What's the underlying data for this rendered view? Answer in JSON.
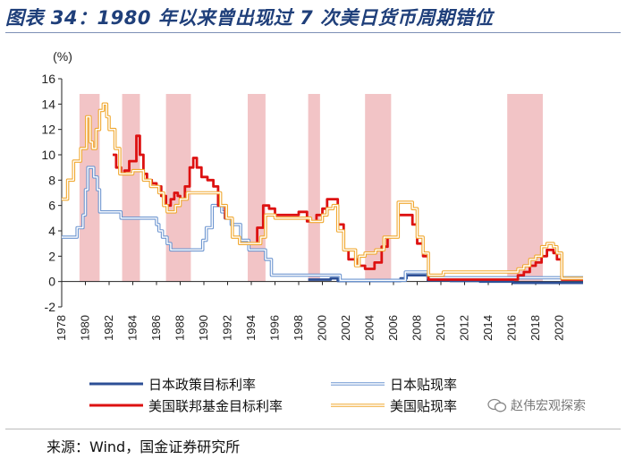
{
  "title": "图表 34：1980 年以来曾出现过 7 次美日货币周期错位",
  "source": "来源：Wind，国金证券研究所",
  "watermark": "赵伟宏观探索",
  "chart_data": {
    "type": "line",
    "ylabel": "(%)",
    "ylim": [
      -2,
      16
    ],
    "yticks": [
      -2,
      0,
      2,
      4,
      6,
      8,
      10,
      12,
      14,
      16
    ],
    "xlim": [
      1978,
      2022
    ],
    "xticks": [
      1978,
      1980,
      1982,
      1984,
      1986,
      1988,
      1990,
      1992,
      1994,
      1996,
      1998,
      2000,
      2002,
      2004,
      2006,
      2008,
      2010,
      2012,
      2014,
      2016,
      2018,
      2020
    ],
    "grid": false,
    "shaded_periods": [
      [
        1979.5,
        1981.2
      ],
      [
        1983.1,
        1984.6
      ],
      [
        1986.8,
        1988.9
      ],
      [
        1993.7,
        1995.2
      ],
      [
        1998.8,
        1999.8
      ],
      [
        2003.6,
        2005.8
      ],
      [
        2015.6,
        2018.6
      ]
    ],
    "legend": [
      {
        "label": "日本政策目标利率",
        "color": "#2c4f96",
        "style": "solid"
      },
      {
        "label": "日本贴现率",
        "color": "#6e96d0",
        "style": "double"
      },
      {
        "label": "美国联邦基金目标利率",
        "color": "#dd1111",
        "style": "solid"
      },
      {
        "label": "美国贴现率",
        "color": "#f0a830",
        "style": "double"
      }
    ],
    "series": [
      {
        "name": "日本政策目标利率",
        "color": "#2c4f96",
        "style": "solid",
        "x": [
          1998.8,
          2000.6,
          2000.7,
          2001.2,
          2001.3,
          2006.5,
          2006.6,
          2007.0,
          2007.1,
          2008.8,
          2008.9,
          2010.8,
          2013.3,
          2016.0,
          2016.1,
          2022.0
        ],
        "y": [
          0.15,
          0.15,
          0.25,
          0.25,
          0.05,
          0.05,
          0.25,
          0.25,
          0.5,
          0.5,
          0.1,
          0.05,
          0.0,
          0.0,
          -0.1,
          -0.1
        ]
      },
      {
        "name": "日本贴现率",
        "color": "#6e96d0",
        "style": "double",
        "x": [
          1978.0,
          1979.2,
          1979.3,
          1979.8,
          1980.0,
          1980.2,
          1980.5,
          1980.7,
          1981.0,
          1981.2,
          1983.0,
          1986.0,
          1986.2,
          1986.5,
          1986.9,
          1987.2,
          1989.4,
          1989.9,
          1990.2,
          1990.7,
          1991.5,
          1991.8,
          1992.3,
          1993.1,
          1993.8,
          1995.2,
          1995.7,
          2001.2,
          2001.5,
          2006.5,
          2007.0,
          2008.8,
          2008.9,
          2022.0
        ],
        "y": [
          3.5,
          3.5,
          4.25,
          5.25,
          7.25,
          9.0,
          9.0,
          8.25,
          7.25,
          5.5,
          5.0,
          4.5,
          4.0,
          3.5,
          3.0,
          2.5,
          2.5,
          3.25,
          4.25,
          6.0,
          5.5,
          5.0,
          4.5,
          3.25,
          2.5,
          1.75,
          0.5,
          0.5,
          0.1,
          0.1,
          0.75,
          0.75,
          0.3,
          0.3
        ]
      },
      {
        "name": "美国联邦基金目标利率",
        "color": "#dd1111",
        "style": "solid",
        "x": [
          1982.3,
          1982.6,
          1983.0,
          1983.3,
          1983.7,
          1984.0,
          1984.3,
          1984.6,
          1984.9,
          1985.2,
          1985.6,
          1986.0,
          1986.4,
          1986.8,
          1987.2,
          1987.5,
          1987.8,
          1988.0,
          1988.4,
          1988.8,
          1989.1,
          1989.4,
          1989.8,
          1990.3,
          1990.8,
          1991.2,
          1991.8,
          1992.4,
          1993.0,
          1994.0,
          1994.5,
          1995.0,
          1995.5,
          1996.0,
          1998.0,
          1998.7,
          1999.0,
          1999.5,
          2000.0,
          2000.4,
          2000.9,
          2001.3,
          2001.8,
          2002.2,
          2003.0,
          2003.6,
          2004.4,
          2005.0,
          2005.5,
          2006.4,
          2007.0,
          2007.6,
          2008.0,
          2008.5,
          2008.95,
          2015.9,
          2016.5,
          2017.0,
          2017.5,
          2018.0,
          2018.5,
          2018.95,
          2019.5,
          2019.8,
          2020.2,
          2022.0
        ],
        "y": [
          10.0,
          9.0,
          8.5,
          8.75,
          9.5,
          9.5,
          11.5,
          10.0,
          8.5,
          8.0,
          7.75,
          7.5,
          6.75,
          6.0,
          6.5,
          7.0,
          6.75,
          6.5,
          7.5,
          9.0,
          9.75,
          9.0,
          8.25,
          8.0,
          7.5,
          6.0,
          5.0,
          3.5,
          3.0,
          3.0,
          4.25,
          6.0,
          5.75,
          5.25,
          5.5,
          4.75,
          4.75,
          5.25,
          5.75,
          6.5,
          6.5,
          4.5,
          2.5,
          1.75,
          1.25,
          1.0,
          1.5,
          2.75,
          3.5,
          5.25,
          5.25,
          4.5,
          3.0,
          2.0,
          0.15,
          0.15,
          0.5,
          0.75,
          1.25,
          1.5,
          2.0,
          2.5,
          2.25,
          1.75,
          0.15,
          0.15
        ]
      },
      {
        "name": "美国贴现率",
        "color": "#f0a830",
        "style": "double",
        "x": [
          1978.0,
          1978.5,
          1979.0,
          1979.6,
          1980.1,
          1980.4,
          1980.6,
          1980.9,
          1981.2,
          1981.5,
          1981.8,
          1982.0,
          1982.5,
          1982.9,
          1984.0,
          1984.5,
          1984.9,
          1985.5,
          1986.2,
          1986.6,
          1986.9,
          1987.6,
          1988.0,
          1988.6,
          1990.9,
          1991.4,
          1991.9,
          1992.4,
          1993.0,
          1994.4,
          1994.8,
          1995.2,
          1996.0,
          1998.7,
          1999.0,
          1999.5,
          2000.0,
          2000.4,
          2000.9,
          2001.3,
          2001.8,
          2002.8,
          2003.1,
          2003.6,
          2004.5,
          2005.2,
          2006.4,
          2007.6,
          2008.0,
          2008.5,
          2008.95,
          2010.2,
          2015.9,
          2016.5,
          2017.0,
          2017.5,
          2018.0,
          2018.5,
          2018.95,
          2019.5,
          2019.8,
          2020.2,
          2022.0
        ],
        "y": [
          6.5,
          8.0,
          9.5,
          10.5,
          13.0,
          11.0,
          10.5,
          12.0,
          13.5,
          14.0,
          13.0,
          12.0,
          10.5,
          8.5,
          8.75,
          8.75,
          8.0,
          7.5,
          7.0,
          6.0,
          5.5,
          6.0,
          6.5,
          7.0,
          7.0,
          6.0,
          5.0,
          3.5,
          3.0,
          3.0,
          3.5,
          5.25,
          5.0,
          5.0,
          4.75,
          4.75,
          5.25,
          5.75,
          6.0,
          4.0,
          2.5,
          1.25,
          2.0,
          2.25,
          2.5,
          3.5,
          6.25,
          5.75,
          3.5,
          2.25,
          0.5,
          0.75,
          0.75,
          1.0,
          1.25,
          1.75,
          2.0,
          2.75,
          3.0,
          2.75,
          2.25,
          0.25,
          0.25
        ]
      }
    ]
  }
}
